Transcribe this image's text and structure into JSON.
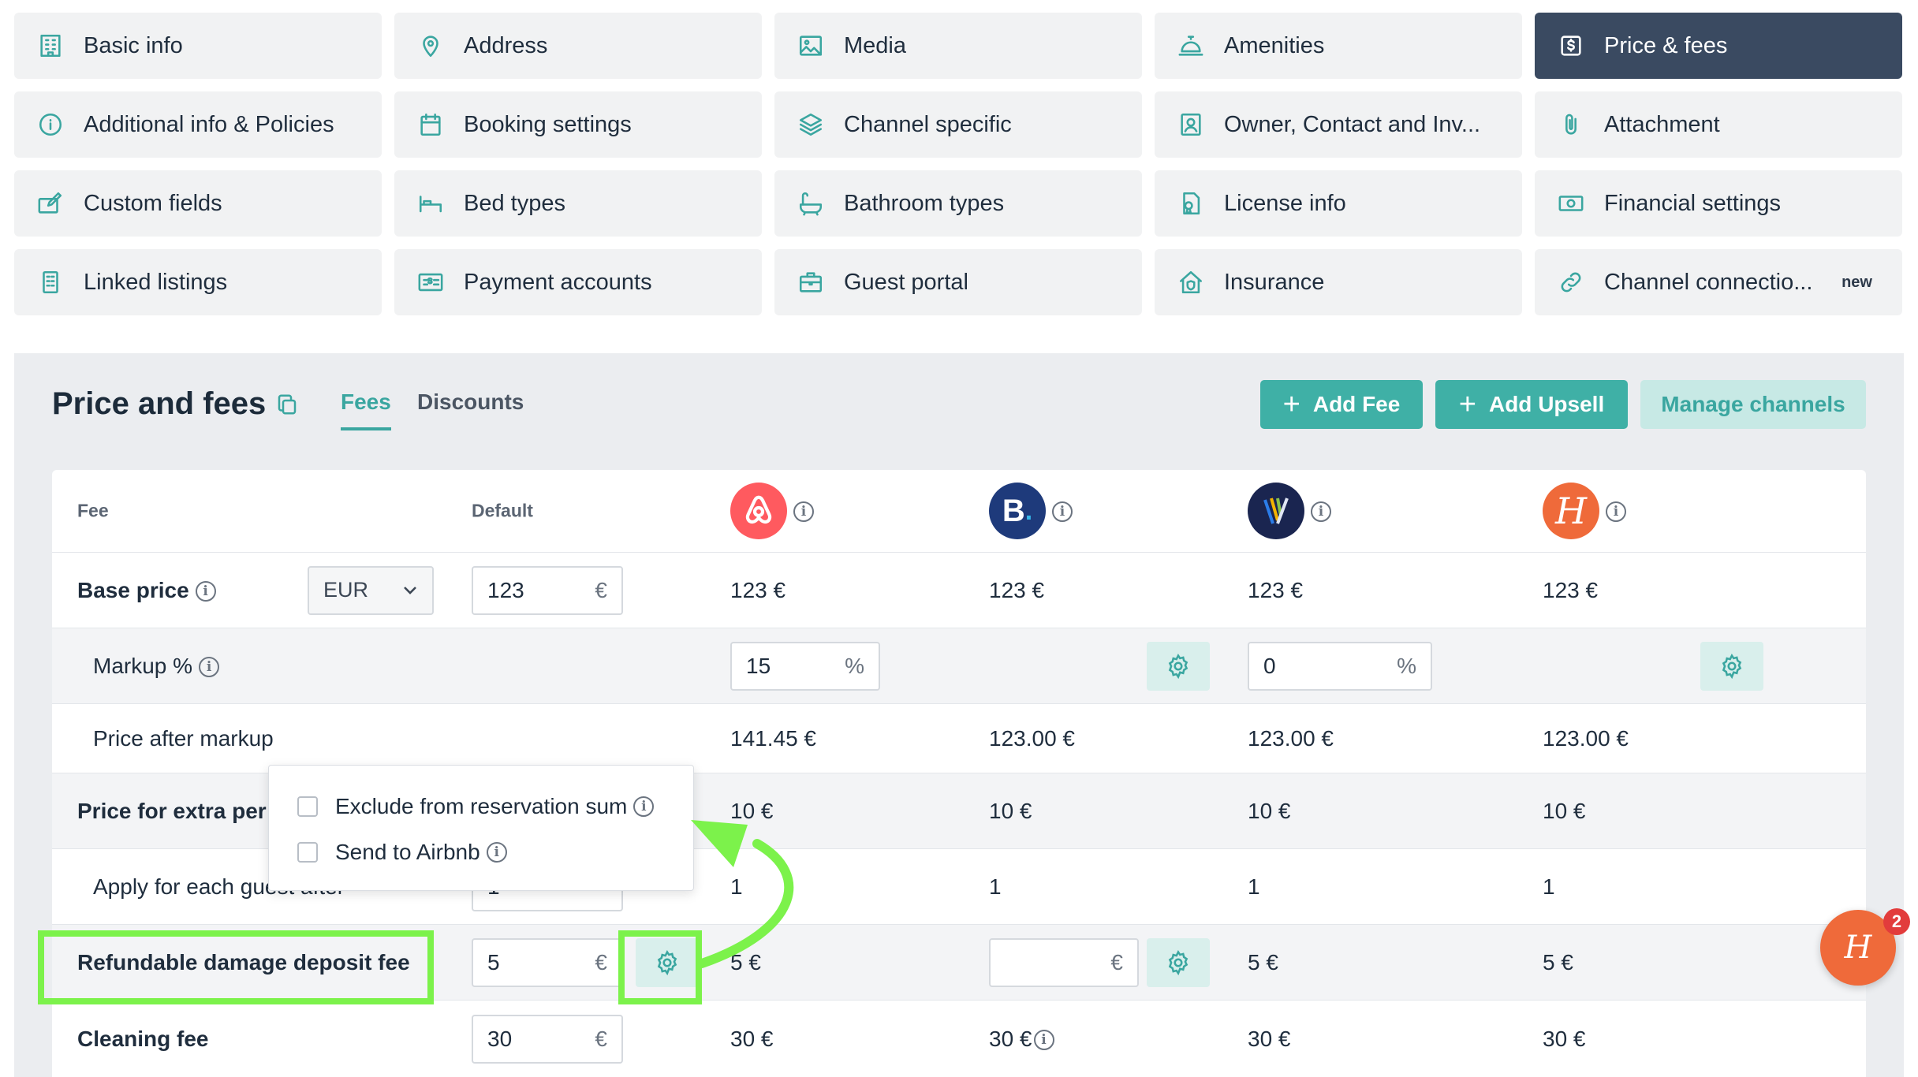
{
  "nav": {
    "items": [
      {
        "label": "Basic info",
        "icon": "building-icon"
      },
      {
        "label": "Address",
        "icon": "location-pin-icon"
      },
      {
        "label": "Media",
        "icon": "image-icon"
      },
      {
        "label": "Amenities",
        "icon": "service-bell-icon"
      },
      {
        "label": "Price & fees",
        "icon": "dollar-square-icon",
        "active": true
      },
      {
        "label": "Additional info & Policies",
        "icon": "info-circle-icon"
      },
      {
        "label": "Booking settings",
        "icon": "calendar-icon"
      },
      {
        "label": "Channel specific",
        "icon": "layers-icon"
      },
      {
        "label": "Owner, Contact and Inv...",
        "icon": "contact-card-icon"
      },
      {
        "label": "Attachment",
        "icon": "paperclip-icon"
      },
      {
        "label": "Custom fields",
        "icon": "edit-field-icon"
      },
      {
        "label": "Bed types",
        "icon": "bed-icon"
      },
      {
        "label": "Bathroom types",
        "icon": "bathtub-icon"
      },
      {
        "label": "License info",
        "icon": "license-icon"
      },
      {
        "label": "Financial settings",
        "icon": "money-icon"
      },
      {
        "label": "Linked listings",
        "icon": "linked-building-icon"
      },
      {
        "label": "Payment accounts",
        "icon": "payment-card-icon"
      },
      {
        "label": "Guest portal",
        "icon": "briefcase-icon"
      },
      {
        "label": "Insurance",
        "icon": "house-shield-icon"
      },
      {
        "label": "Channel connectio...",
        "icon": "link-icon",
        "badge": "new"
      }
    ]
  },
  "panel": {
    "title": "Price and fees",
    "tabs": [
      "Fees",
      "Discounts"
    ],
    "buttons": {
      "add_fee": "Add Fee",
      "add_upsell": "Add Upsell",
      "manage_channels": "Manage channels"
    }
  },
  "table": {
    "headers": {
      "fee": "Fee",
      "default": "Default"
    },
    "channels": [
      "airbnb",
      "booking.com",
      "vrbo",
      "hostaway"
    ],
    "rows": {
      "base_price": {
        "label": "Base price",
        "currency": "EUR",
        "default_value": "123",
        "default_suffix": "€",
        "values": [
          "123 €",
          "123 €",
          "123 €",
          "123 €"
        ]
      },
      "markup": {
        "label": "Markup %",
        "airbnb_value": "15",
        "vrbo_value": "0",
        "suffix": "%"
      },
      "price_after_markup": {
        "label": "Price after markup",
        "values": [
          "141.45 €",
          "123.00 €",
          "123.00 €",
          "123.00 €"
        ]
      },
      "extra_person": {
        "label": "Price for extra per",
        "values": [
          "10 €",
          "10 €",
          "10 €",
          "10 €"
        ]
      },
      "apply_guest": {
        "label": "Apply for each guest after",
        "default_value": "1",
        "values": [
          "1",
          "1",
          "1",
          "1"
        ]
      },
      "damage_deposit": {
        "label": "Refundable damage deposit fee",
        "default_value": "5",
        "default_suffix": "€",
        "airbnb": "5 €",
        "booking_value": "",
        "booking_suffix": "€",
        "vrbo": "5 €",
        "hostaway": "5 €"
      },
      "cleaning_fee": {
        "label": "Cleaning fee",
        "default_value": "30",
        "default_suffix": "€",
        "values": [
          "30 €",
          "30 €",
          "30 €",
          "30 €"
        ]
      }
    }
  },
  "popover": {
    "option1": "Exclude from reservation sum",
    "option2": "Send to Airbnb"
  },
  "chat": {
    "badge_count": "2",
    "glyph": "H"
  },
  "colors": {
    "accent": "#3fb0a6",
    "active_nav": "#3a4a61",
    "highlight": "#7cf24b",
    "airbnb": "#ff5a5f",
    "booking": "#1e3a7b",
    "hostaway": "#ef6a3a"
  }
}
